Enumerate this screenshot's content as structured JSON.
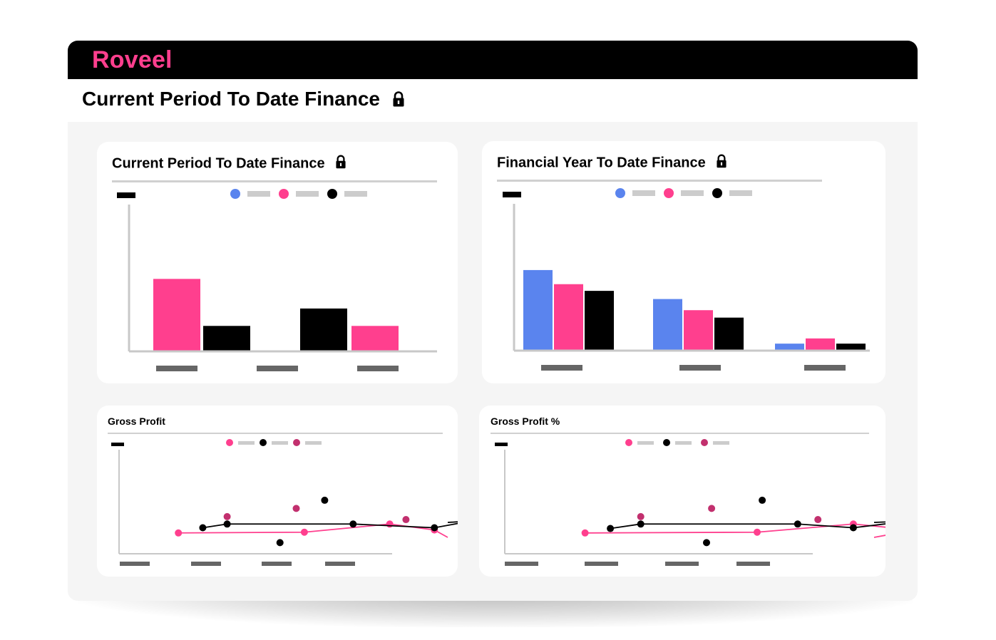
{
  "app": {
    "name": "Roveel"
  },
  "page": {
    "title": "Current Period To Date Finance",
    "lock_icon": "lock-icon"
  },
  "colors": {
    "blue": "#5a84ee",
    "pink": "#ff3f8e",
    "black": "#000000",
    "magenta": "#c2306e",
    "placeholder": "#cccccc",
    "axis": "#c8c8c8",
    "tick": "#666666"
  },
  "cards": {
    "current_period": {
      "title": "Current Period To Date Finance",
      "chart_data": {
        "type": "bar",
        "categories": [
          "",
          "",
          ""
        ],
        "series": [
          {
            "color": "#5a84ee",
            "values": [
              0,
              0,
              0
            ]
          },
          {
            "color": "#ff3f8e",
            "values": [
              82,
              0,
              28
            ]
          },
          {
            "color": "#000000",
            "values": [
              28,
              0,
              48
            ]
          }
        ],
        "ylim": [
          0,
          140
        ]
      }
    },
    "financial_year": {
      "title": "Financial Year To Date Finance",
      "chart_data": {
        "type": "bar",
        "categories": [
          "",
          "",
          ""
        ],
        "series": [
          {
            "color": "#5a84ee",
            "values": [
              107,
              68,
              8
            ]
          },
          {
            "color": "#ff3f8e",
            "values": [
              88,
              53,
              15
            ]
          },
          {
            "color": "#000000",
            "values": [
              79,
              43,
              8
            ]
          }
        ],
        "ylim": [
          0,
          210
        ]
      }
    },
    "gross_profit": {
      "title": "Gross Profit",
      "chart_data": {
        "type": "line",
        "x": [
          0,
          1,
          2,
          3,
          4,
          5,
          6,
          7,
          8,
          9,
          10
        ],
        "series": [
          {
            "color": "#ff3f8e",
            "marker": "dot",
            "line": true,
            "points": [
              [
                0.6,
                28
              ],
              [
                3.7,
                29
              ],
              [
                5.8,
                40
              ],
              [
                6.9,
                32
              ]
            ]
          },
          {
            "color": "#000000",
            "marker": "dot",
            "line": true,
            "points": [
              [
                1.2,
                35
              ],
              [
                1.8,
                40
              ],
              [
                4.9,
                40
              ],
              [
                6.9,
                35
              ],
              [
                7.8,
                44
              ]
            ]
          },
          {
            "color": "#000000",
            "marker": "dot",
            "line": false,
            "points": [
              [
                3.1,
                15
              ],
              [
                4.2,
                72
              ]
            ]
          },
          {
            "color": "#c2306e",
            "marker": "dot",
            "line": false,
            "points": [
              [
                1.8,
                50
              ],
              [
                3.5,
                61
              ],
              [
                6.2,
                46
              ]
            ]
          }
        ],
        "ylim": [
          0,
          140
        ]
      }
    },
    "gross_profit_pct": {
      "title": "Gross Profit %",
      "chart_data": {
        "type": "line",
        "x": [
          0,
          1,
          2,
          3,
          4,
          5,
          6,
          7,
          8,
          9,
          10
        ],
        "series": [
          {
            "color": "#ff3f8e",
            "marker": "dot",
            "line": true,
            "points": [
              [
                0.6,
                28
              ],
              [
                4.0,
                29
              ],
              [
                5.9,
                40
              ],
              [
                7.1,
                32
              ]
            ]
          },
          {
            "color": "#000000",
            "marker": "dot",
            "line": true,
            "points": [
              [
                1.1,
                34
              ],
              [
                1.7,
                40
              ],
              [
                4.8,
                40
              ],
              [
                5.9,
                35
              ],
              [
                7.0,
                44
              ]
            ]
          },
          {
            "color": "#000000",
            "marker": "dot",
            "line": false,
            "points": [
              [
                3.0,
                15
              ],
              [
                4.1,
                72
              ]
            ]
          },
          {
            "color": "#c2306e",
            "marker": "dot",
            "line": false,
            "points": [
              [
                1.7,
                50
              ],
              [
                3.1,
                61
              ],
              [
                5.2,
                46
              ]
            ]
          }
        ],
        "ylim": [
          0,
          140
        ]
      }
    }
  }
}
